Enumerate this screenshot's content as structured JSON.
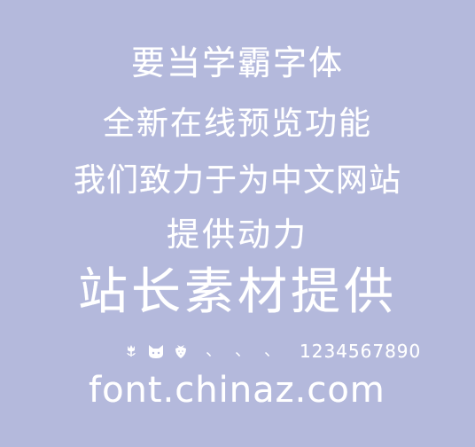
{
  "background_color": "#b4b9dc",
  "text_color": "#ffffff",
  "lines": [
    "要当学霸字体",
    "全新在线预览功能",
    "我们致力于为中文网站",
    "提供动力",
    "站长素材提供"
  ],
  "symbols": {
    "icons": [
      "tulip-icon",
      "cat-face-icon",
      "strawberry-icon"
    ],
    "dots": [
      "、",
      "、",
      "、"
    ],
    "digits": "1234567890"
  },
  "url": "font.chinaz.com"
}
